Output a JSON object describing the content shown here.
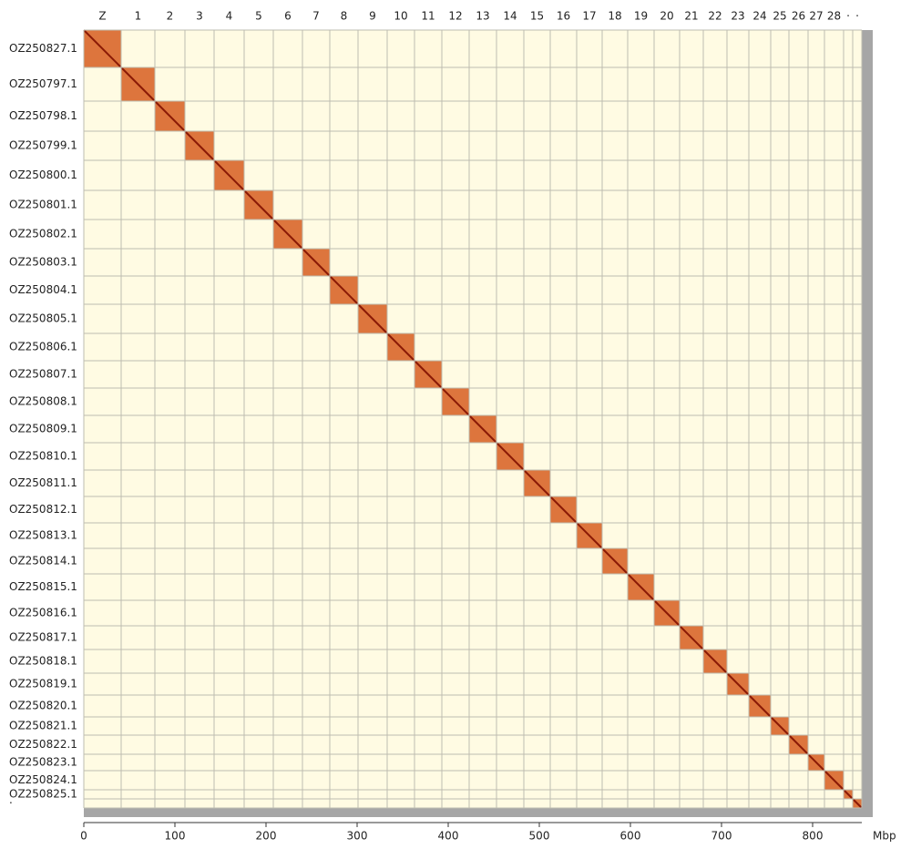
{
  "chart_data": {
    "type": "contact-map",
    "top_labels": [
      "Z",
      "1",
      "2",
      "3",
      "4",
      "5",
      "6",
      "7",
      "8",
      "9",
      "10",
      "11",
      "12",
      "13",
      "14",
      "15",
      "16",
      "17",
      "18",
      "19",
      "20",
      "21",
      "22",
      "23",
      "24",
      "25",
      "26",
      "27",
      "28",
      "·",
      "·"
    ],
    "left_labels": [
      "OZ250827.1",
      "OZ250797.1",
      "OZ250798.1",
      "OZ250799.1",
      "OZ250800.1",
      "OZ250801.1",
      "OZ250802.1",
      "OZ250803.1",
      "OZ250804.1",
      "OZ250805.1",
      "OZ250806.1",
      "OZ250807.1",
      "OZ250808.1",
      "OZ250809.1",
      "OZ250810.1",
      "OZ250811.1",
      "OZ250812.1",
      "OZ250813.1",
      "OZ250814.1",
      "OZ250815.1",
      "OZ250816.1",
      "OZ250817.1",
      "OZ250818.1",
      "OZ250819.1",
      "OZ250820.1",
      "OZ250821.1",
      "OZ250822.1",
      "OZ250823.1",
      "OZ250824.1",
      "OZ250825.1",
      "·"
    ],
    "boundaries": [
      0,
      41,
      78,
      111,
      143,
      176,
      208,
      240,
      270,
      301,
      333,
      363,
      393,
      423,
      453,
      483,
      512,
      541,
      569,
      597,
      626,
      654,
      680,
      706,
      730,
      754,
      774,
      795,
      813,
      834,
      844,
      854
    ],
    "xlim": [
      0,
      854
    ],
    "xticks": [
      0,
      100,
      200,
      300,
      400,
      500,
      600,
      700,
      800
    ],
    "xlabel": "Mbp",
    "block_color": "#d9662a",
    "diagonal_color": "#8a1a06",
    "background_color": "#fffbe3",
    "grid_color": "#bdbdb0"
  }
}
